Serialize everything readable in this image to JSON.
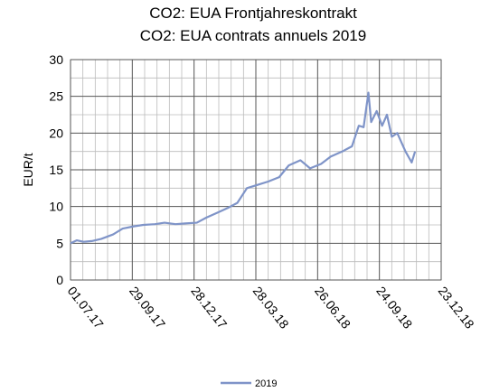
{
  "chart_data": {
    "type": "line",
    "title": "CO2: EUA Frontjahreskontrakt",
    "subtitle": "CO2: EUA contrats annuels 2019",
    "y_label": "EUR/t",
    "x": [
      "2017-07-01",
      "2017-07-10",
      "2017-07-20",
      "2017-08-01",
      "2017-08-15",
      "2017-09-01",
      "2017-09-15",
      "2017-10-01",
      "2017-10-15",
      "2017-11-01",
      "2017-11-15",
      "2017-12-01",
      "2017-12-15",
      "2018-01-01",
      "2018-01-15",
      "2018-02-01",
      "2018-02-15",
      "2018-03-01",
      "2018-03-15",
      "2018-04-01",
      "2018-04-15",
      "2018-05-01",
      "2018-05-15",
      "2018-06-01",
      "2018-06-15",
      "2018-07-01",
      "2018-07-15",
      "2018-08-01",
      "2018-08-15",
      "2018-08-25",
      "2018-09-01",
      "2018-09-08",
      "2018-09-12",
      "2018-09-20",
      "2018-09-28",
      "2018-10-05",
      "2018-10-12",
      "2018-10-20",
      "2018-11-01",
      "2018-11-10",
      "2018-11-15"
    ],
    "series": [
      {
        "name": "2019",
        "color": "#7f94c8",
        "values": [
          5.0,
          5.4,
          5.2,
          5.3,
          5.6,
          6.2,
          7.0,
          7.3,
          7.5,
          7.6,
          7.8,
          7.6,
          7.7,
          7.8,
          8.5,
          9.2,
          9.8,
          10.5,
          12.5,
          13.0,
          13.4,
          14.0,
          15.6,
          16.3,
          15.2,
          15.8,
          16.8,
          17.5,
          18.2,
          21.0,
          20.8,
          25.5,
          21.5,
          23.0,
          21.0,
          22.5,
          19.5,
          20.0,
          17.5,
          16.0,
          17.5
        ]
      }
    ],
    "xlim": [
      "2017-07-01",
      "2018-12-23"
    ],
    "xticks": [
      {
        "value": "2017-07-01",
        "label": "01.07.17"
      },
      {
        "value": "2017-09-29",
        "label": "29.09.17"
      },
      {
        "value": "2017-12-28",
        "label": "28.12.17"
      },
      {
        "value": "2018-03-28",
        "label": "28.03.18"
      },
      {
        "value": "2018-06-26",
        "label": "26.06.18"
      },
      {
        "value": "2018-09-24",
        "label": "24.09.18"
      },
      {
        "value": "2018-12-23",
        "label": "23.12.18"
      }
    ],
    "ylim": [
      0,
      30
    ],
    "yticks": [
      0,
      5,
      10,
      15,
      20,
      25,
      30
    ],
    "grid": true,
    "legend": "bottom"
  }
}
